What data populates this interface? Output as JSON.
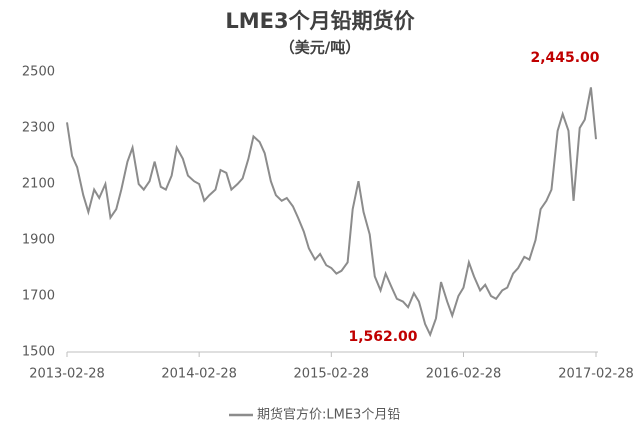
{
  "chart_data": {
    "type": "line",
    "title": "LME3个月铅期货价",
    "subtitle": "（美元/吨）",
    "x": [
      "2013-02-28",
      "2013-03-14",
      "2013-03-28",
      "2013-04-14",
      "2013-04-28",
      "2013-05-14",
      "2013-05-28",
      "2013-06-14",
      "2013-06-28",
      "2013-07-14",
      "2013-07-28",
      "2013-08-14",
      "2013-08-28",
      "2013-09-14",
      "2013-09-28",
      "2013-10-14",
      "2013-10-28",
      "2013-11-14",
      "2013-11-28",
      "2013-12-14",
      "2013-12-28",
      "2014-01-14",
      "2014-01-28",
      "2014-02-14",
      "2014-02-28",
      "2014-03-14",
      "2014-03-28",
      "2014-04-14",
      "2014-04-28",
      "2014-05-14",
      "2014-05-28",
      "2014-06-14",
      "2014-06-28",
      "2014-07-14",
      "2014-07-28",
      "2014-08-14",
      "2014-08-28",
      "2014-09-14",
      "2014-09-28",
      "2014-10-14",
      "2014-10-28",
      "2014-11-14",
      "2014-11-28",
      "2014-12-14",
      "2014-12-28",
      "2015-01-14",
      "2015-01-28",
      "2015-02-14",
      "2015-02-28",
      "2015-03-14",
      "2015-03-28",
      "2015-04-14",
      "2015-04-28",
      "2015-05-14",
      "2015-05-28",
      "2015-06-14",
      "2015-06-28",
      "2015-07-14",
      "2015-07-28",
      "2015-08-14",
      "2015-08-28",
      "2015-09-14",
      "2015-09-28",
      "2015-10-14",
      "2015-10-28",
      "2015-11-14",
      "2015-11-28",
      "2015-12-14",
      "2015-12-28",
      "2016-01-14",
      "2016-01-28",
      "2016-02-14",
      "2016-02-28",
      "2016-03-14",
      "2016-03-28",
      "2016-04-14",
      "2016-04-28",
      "2016-05-14",
      "2016-05-28",
      "2016-06-14",
      "2016-06-28",
      "2016-07-14",
      "2016-07-28",
      "2016-08-14",
      "2016-08-28",
      "2016-09-14",
      "2016-09-28",
      "2016-10-14",
      "2016-10-28",
      "2016-11-14",
      "2016-11-28",
      "2016-12-14",
      "2016-12-28",
      "2017-01-14",
      "2017-01-28",
      "2017-02-14",
      "2017-02-28"
    ],
    "series": [
      {
        "name": "期货官方价:LME3个月铅",
        "color": "#8c8c8c",
        "values": [
          2320,
          2200,
          2160,
          2060,
          2000,
          2080,
          2050,
          2100,
          1980,
          2010,
          2080,
          2180,
          2230,
          2100,
          2080,
          2110,
          2180,
          2090,
          2080,
          2130,
          2230,
          2190,
          2130,
          2110,
          2100,
          2040,
          2060,
          2080,
          2150,
          2140,
          2080,
          2100,
          2120,
          2190,
          2270,
          2250,
          2210,
          2110,
          2060,
          2040,
          2050,
          2020,
          1980,
          1930,
          1870,
          1830,
          1850,
          1810,
          1800,
          1780,
          1790,
          1820,
          2010,
          2110,
          2000,
          1920,
          1770,
          1720,
          1780,
          1730,
          1690,
          1680,
          1660,
          1710,
          1680,
          1600,
          1562,
          1620,
          1750,
          1680,
          1630,
          1700,
          1730,
          1820,
          1770,
          1720,
          1740,
          1700,
          1690,
          1720,
          1730,
          1780,
          1800,
          1840,
          1830,
          1900,
          2010,
          2040,
          2080,
          2290,
          2350,
          2290,
          2040,
          2300,
          2330,
          2445,
          2260
        ]
      }
    ],
    "annotations": [
      "2,445.00",
      "1,562.00"
    ],
    "xlim": [
      "2013-02-28",
      "2017-02-28"
    ],
    "xticks": [
      "2013-02-28",
      "2014-02-28",
      "2015-02-28",
      "2016-02-28",
      "2017-02-28"
    ],
    "ylim": [
      1500,
      2550
    ],
    "yticks": [
      1500,
      1700,
      1900,
      2100,
      2300,
      2500
    ],
    "grid": false,
    "legend": "bottom"
  }
}
